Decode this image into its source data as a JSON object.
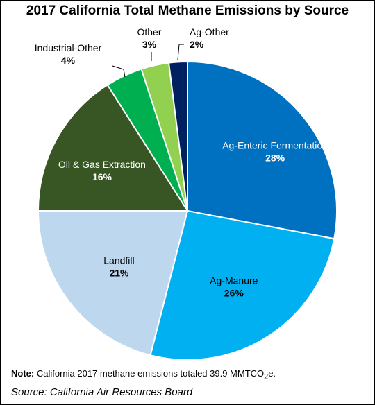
{
  "chart_data": {
    "type": "pie",
    "title": "2017 California Total Methane Emissions by Source",
    "slices": [
      {
        "label": "Ag-Enteric Fermentation",
        "value": 28,
        "value_label": "28%",
        "color": "#0070c0"
      },
      {
        "label": "Ag-Manure",
        "value": 26,
        "value_label": "26%",
        "color": "#00b0f0"
      },
      {
        "label": "Landfill",
        "value": 21,
        "value_label": "21%",
        "color": "#bdd7ee"
      },
      {
        "label": "Oil & Gas Extraction",
        "value": 16,
        "value_label": "16%",
        "color": "#375623"
      },
      {
        "label": "Industrial-Other",
        "value": 4,
        "value_label": "4%",
        "color": "#00b050"
      },
      {
        "label": "Other",
        "value": 3,
        "value_label": "3%",
        "color": "#92d050"
      },
      {
        "label": "Ag-Other",
        "value": 2,
        "value_label": "2%",
        "color": "#002060"
      }
    ],
    "start_angle_deg": 0,
    "direction": "clockwise"
  },
  "note": {
    "prefix": "Note:",
    "text": " California 2017 methane emissions totaled 39.9 MMTCO",
    "subscript": "2",
    "suffix": "e."
  },
  "source": "Source: California Air Resources Board"
}
